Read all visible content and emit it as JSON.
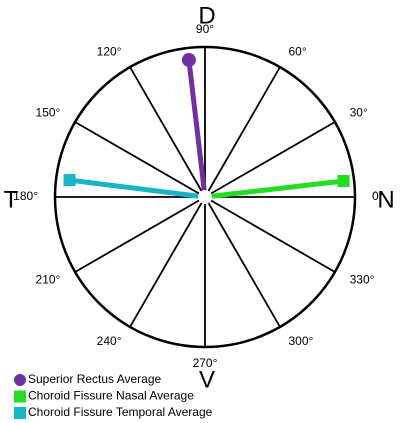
{
  "chart_data": {
    "type": "polar",
    "direction_labels": {
      "top": "D",
      "right": "N",
      "bottom": "V",
      "left": "T"
    },
    "rlim": [
      0,
      1
    ],
    "thetaticks": [
      {
        "value": 0,
        "label": "0°"
      },
      {
        "value": 30,
        "label": "30°"
      },
      {
        "value": 60,
        "label": "60°"
      },
      {
        "value": 90,
        "label": "90°"
      },
      {
        "value": 120,
        "label": "120°"
      },
      {
        "value": 150,
        "label": "150°"
      },
      {
        "value": 180,
        "label": "180°"
      },
      {
        "value": 210,
        "label": "210°"
      },
      {
        "value": 240,
        "label": "240°"
      },
      {
        "value": 270,
        "label": "270°"
      },
      {
        "value": 300,
        "label": "300°"
      },
      {
        "value": 330,
        "label": "330°"
      }
    ],
    "series": [
      {
        "name": "Superior Rectus Average",
        "color": "#7030a0",
        "marker": "circle",
        "theta": [
          96.7
        ],
        "r": [
          0.92
        ]
      },
      {
        "name": "Choroid Fissure Nasal Average",
        "color": "#22dd22",
        "marker": "square",
        "theta": [
          6.6
        ],
        "r": [
          0.93
        ]
      },
      {
        "name": "Choroid Fissure Temporal Average",
        "color": "#17b3c6",
        "marker": "square",
        "theta": [
          172.9
        ],
        "r": [
          0.91
        ]
      }
    ]
  }
}
